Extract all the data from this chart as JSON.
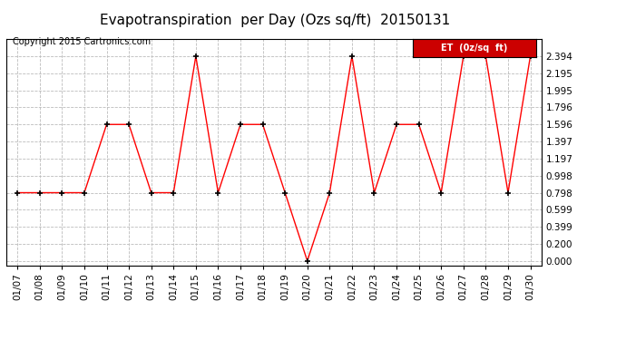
{
  "title": "Evapotranspiration  per Day (Ozs sq/ft)  20150131",
  "copyright_text": "Copyright 2015 Cartronics.com",
  "legend_label": "ET  (0z/sq  ft)",
  "dates": [
    "01/07",
    "01/08",
    "01/09",
    "01/10",
    "01/11",
    "01/12",
    "01/13",
    "01/14",
    "01/15",
    "01/16",
    "01/17",
    "01/18",
    "01/19",
    "01/20",
    "01/21",
    "01/22",
    "01/23",
    "01/24",
    "01/25",
    "01/26",
    "01/27",
    "01/28",
    "01/29",
    "01/30"
  ],
  "values": [
    0.798,
    0.798,
    0.798,
    0.798,
    1.596,
    1.596,
    0.798,
    0.798,
    2.394,
    0.798,
    1.596,
    1.596,
    0.798,
    0.0,
    0.798,
    2.394,
    0.798,
    1.596,
    1.596,
    0.798,
    2.394,
    2.394,
    0.798,
    2.394
  ],
  "line_color": "red",
  "marker_color": "black",
  "bg_color": "#ffffff",
  "grid_color": "#bbbbbb",
  "ylim": [
    -0.05,
    2.594
  ],
  "yticks": [
    0.0,
    0.2,
    0.399,
    0.599,
    0.798,
    0.998,
    1.197,
    1.397,
    1.596,
    1.796,
    1.995,
    2.195,
    2.394
  ],
  "title_fontsize": 11,
  "copyright_fontsize": 7,
  "legend_bg": "#cc0000",
  "legend_text_color": "white",
  "tick_fontsize": 7.5,
  "ytick_fontsize": 7.5
}
